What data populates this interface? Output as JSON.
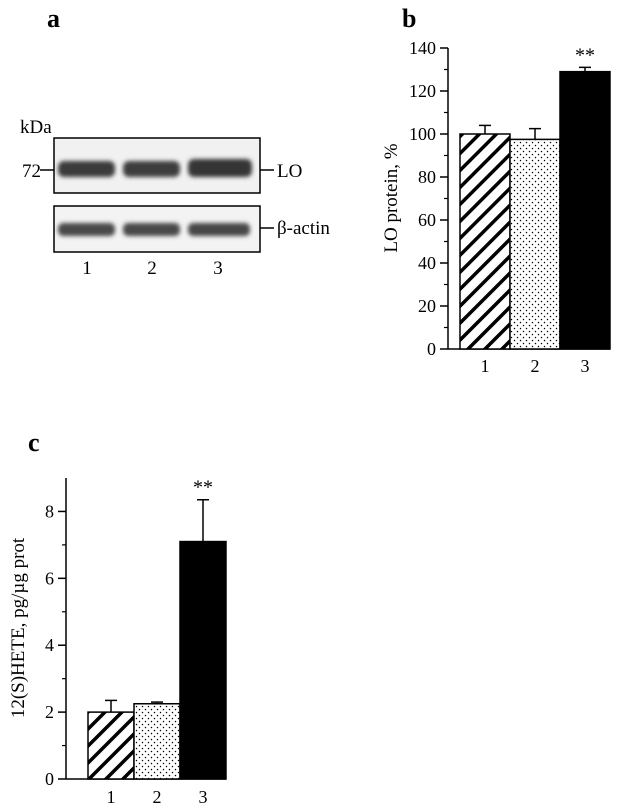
{
  "panels": {
    "a": {
      "letter": "a",
      "unit_label": "kDa",
      "marker_label": "72",
      "band_labels": [
        "LO",
        "β-actin"
      ],
      "lane_labels": [
        "1",
        "2",
        "3"
      ]
    },
    "b": {
      "letter": "b"
    },
    "c": {
      "letter": "c"
    }
  },
  "colors": {
    "bar1": "hatched",
    "bar2": "dotted",
    "bar3": "#000000"
  },
  "chart_data": [
    {
      "panel": "b",
      "type": "bar",
      "categories": [
        "1",
        "2",
        "3"
      ],
      "values": [
        100,
        97.5,
        129
      ],
      "errors": [
        4,
        5,
        2
      ],
      "significance": [
        "",
        "",
        "**"
      ],
      "ylabel": "LO protein, %",
      "ylim": [
        0,
        140
      ],
      "yticks": [
        0,
        20,
        40,
        60,
        80,
        100,
        120,
        140
      ],
      "grid": false,
      "legend": "none"
    },
    {
      "panel": "c",
      "type": "bar",
      "categories": [
        "1",
        "2",
        "3"
      ],
      "values": [
        2.0,
        2.25,
        7.1
      ],
      "errors": [
        0.35,
        0.05,
        1.25
      ],
      "significance": [
        "",
        "",
        "**"
      ],
      "ylabel": "12(S)HETE, pg/µg prot",
      "ylim": [
        0,
        9
      ],
      "yticks": [
        0,
        2,
        4,
        6,
        8
      ],
      "grid": false,
      "legend": "none"
    }
  ]
}
